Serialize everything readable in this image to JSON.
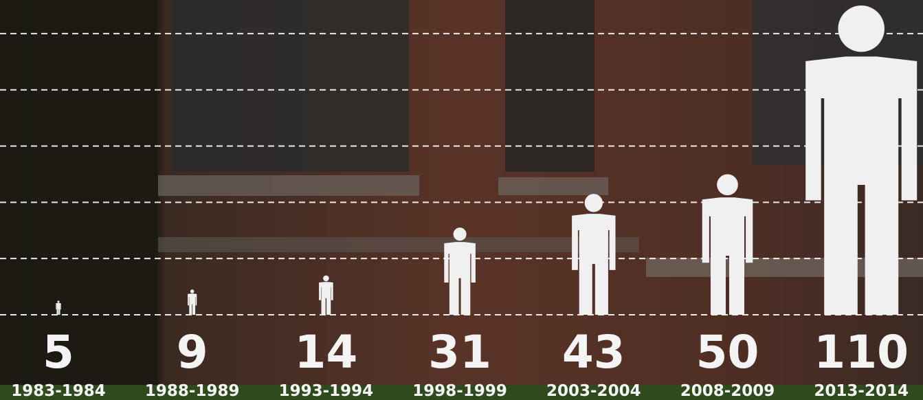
{
  "chart_data": {
    "type": "pictograph",
    "categories": [
      "1983-1984",
      "1988-1989",
      "1993-1994",
      "1998-1999",
      "2003-2004",
      "2008-2009",
      "2013-2014"
    ],
    "values": [
      5,
      9,
      14,
      31,
      43,
      50,
      110
    ],
    "color": "#f0f0f0",
    "ylim": [
      0,
      110
    ],
    "yticks": [
      0,
      20,
      40,
      60,
      80,
      100
    ],
    "grid": true
  }
}
